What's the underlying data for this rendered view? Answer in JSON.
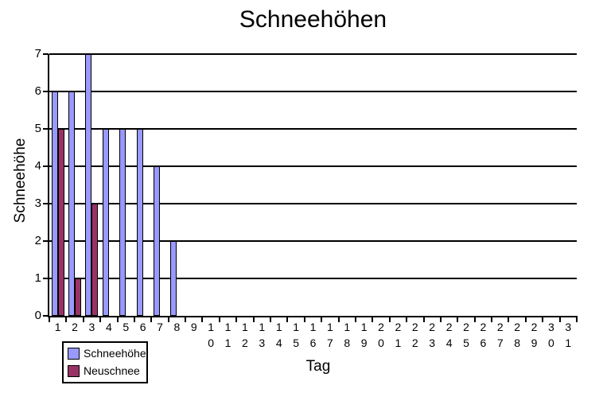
{
  "chart_data": {
    "type": "bar",
    "title": "Schneehöhen",
    "xlabel": "Tag",
    "ylabel": "Schneehöhe",
    "categories": [
      1,
      2,
      3,
      4,
      5,
      6,
      7,
      8,
      9,
      10,
      11,
      12,
      13,
      14,
      15,
      16,
      17,
      18,
      19,
      20,
      21,
      22,
      23,
      24,
      25,
      26,
      27,
      28,
      29,
      30,
      31
    ],
    "series": [
      {
        "name": "Schneehöhe",
        "color": "#9999FF",
        "values": [
          6,
          6,
          7,
          5,
          5,
          5,
          4,
          2,
          0,
          0,
          0,
          0,
          0,
          0,
          0,
          0,
          0,
          0,
          0,
          0,
          0,
          0,
          0,
          0,
          0,
          0,
          0,
          0,
          0,
          0,
          0
        ]
      },
      {
        "name": "Neuschnee",
        "color": "#993366",
        "values": [
          5,
          1,
          3,
          0,
          0,
          0,
          0,
          0,
          0,
          0,
          0,
          0,
          0,
          0,
          0,
          0,
          0,
          0,
          0,
          0,
          0,
          0,
          0,
          0,
          0,
          0,
          0,
          0,
          0,
          0,
          0
        ]
      }
    ],
    "ylim": [
      0,
      7
    ],
    "yticks": [
      0,
      1,
      2,
      3,
      4,
      5,
      6,
      7
    ],
    "grid": "horizontal",
    "legend_position": "bottom-left",
    "axis_color": "#000000",
    "background_color": "#FFFFFF"
  }
}
